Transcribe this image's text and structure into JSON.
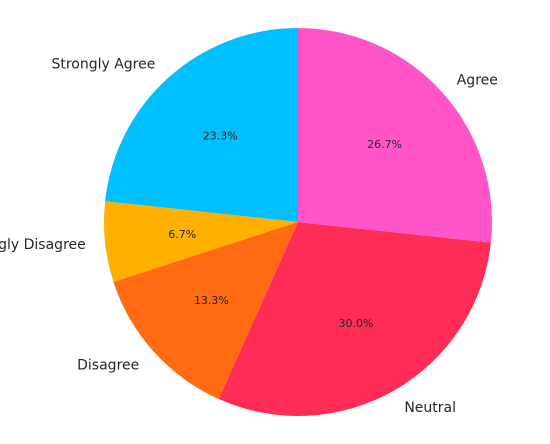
{
  "chart_data": {
    "type": "pie",
    "title": "",
    "start_angle_deg": 90,
    "direction": "counterclockwise",
    "slices": [
      {
        "label": "Strongly Agree",
        "value": 23.3,
        "pct_label": "23.3%",
        "color": "#00BFFF"
      },
      {
        "label": "Strongly Disagree",
        "value": 6.7,
        "pct_label": "6.7%",
        "color": "#FFB000"
      },
      {
        "label": "Disagree",
        "value": 13.3,
        "pct_label": "13.3%",
        "color": "#FF6A13"
      },
      {
        "label": "Neutral",
        "value": 30.0,
        "pct_label": "30.0%",
        "color": "#FF2D55"
      },
      {
        "label": "Agree",
        "value": 26.7,
        "pct_label": "26.7%",
        "color": "#FF55C8"
      }
    ]
  }
}
